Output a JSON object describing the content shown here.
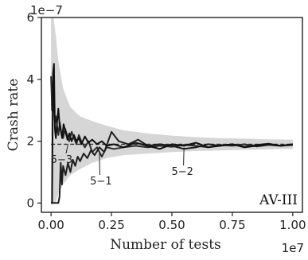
{
  "chart_data": {
    "type": "line",
    "xlabel": "Number of tests",
    "ylabel": "Crash rate",
    "x_offset_label": "1e7",
    "y_offset_label": "1e−7",
    "xlim": [
      -0.04,
      1.04
    ],
    "ylim": [
      -0.3,
      6.0
    ],
    "x_ticks": [
      0.0,
      0.25,
      0.5,
      0.75,
      1.0
    ],
    "x_tick_labels": [
      "0.00",
      "0.25",
      "0.50",
      "0.75",
      "1.00"
    ],
    "y_ticks": [
      0,
      2,
      4,
      6
    ],
    "y_tick_labels": [
      "0",
      "2",
      "4",
      "6"
    ],
    "grid": false,
    "panel_label": "AV-III",
    "reference_line": {
      "y": 1.9,
      "x_start": 0.0,
      "x_end": 1.0,
      "style": "dashed",
      "color": "#333333"
    },
    "band": {
      "color": "#c8c8c8",
      "x": [
        0.0,
        0.01,
        0.02,
        0.03,
        0.05,
        0.08,
        0.12,
        0.17,
        0.23,
        0.3,
        0.4,
        0.5,
        0.6,
        0.7,
        0.8,
        0.9,
        1.0
      ],
      "upper": [
        6.0,
        6.0,
        5.4,
        4.6,
        3.7,
        3.1,
        2.8,
        2.65,
        2.5,
        2.35,
        2.25,
        2.18,
        2.13,
        2.1,
        2.08,
        2.06,
        2.05
      ],
      "lower": [
        0.0,
        0.0,
        0.0,
        0.3,
        0.6,
        0.9,
        1.1,
        1.3,
        1.45,
        1.55,
        1.6,
        1.65,
        1.68,
        1.7,
        1.72,
        1.74,
        1.75
      ]
    },
    "series": [
      {
        "name": "5-1",
        "color": "#2a2a2a",
        "x": [
          0.0,
          0.002,
          0.004,
          0.007,
          0.01,
          0.013,
          0.016,
          0.02,
          0.025,
          0.03,
          0.036,
          0.042,
          0.05,
          0.058,
          0.066,
          0.075,
          0.085,
          0.095,
          0.105,
          0.115,
          0.125,
          0.14,
          0.155,
          0.17,
          0.19,
          0.21,
          0.23,
          0.26,
          0.3,
          0.35,
          0.4,
          0.45,
          0.5,
          0.55,
          0.6,
          0.65,
          0.7,
          0.75,
          0.8,
          0.85,
          0.9,
          0.95,
          1.0
        ],
        "values": [
          4.1,
          3.6,
          3.0,
          3.9,
          3.4,
          2.9,
          2.6,
          2.8,
          2.5,
          2.2,
          2.6,
          2.3,
          2.1,
          2.4,
          2.2,
          2.0,
          2.3,
          2.1,
          1.9,
          2.2,
          2.0,
          1.8,
          2.0,
          1.65,
          1.8,
          1.5,
          1.8,
          1.75,
          1.8,
          1.85,
          1.8,
          1.85,
          1.82,
          1.88,
          1.85,
          1.8,
          1.88,
          1.85,
          1.9,
          1.83,
          1.88,
          1.85,
          1.9
        ]
      },
      {
        "name": "5-2",
        "color": "#1e1e1e",
        "x": [
          0.0,
          0.002,
          0.005,
          0.008,
          0.011,
          0.014,
          0.018,
          0.022,
          0.026,
          0.03,
          0.035,
          0.04,
          0.045,
          0.05,
          0.06,
          0.07,
          0.08,
          0.09,
          0.1,
          0.11,
          0.12,
          0.135,
          0.15,
          0.165,
          0.18,
          0.2,
          0.22,
          0.25,
          0.28,
          0.32,
          0.36,
          0.4,
          0.45,
          0.5,
          0.55,
          0.6,
          0.65,
          0.7,
          0.75,
          0.8,
          0.85,
          0.9,
          0.95,
          1.0
        ],
        "values": [
          0.0,
          0.0,
          0.0,
          0.0,
          0.0,
          0.0,
          0.0,
          0.0,
          0.0,
          0.0,
          0.2,
          1.3,
          0.6,
          1.2,
          0.9,
          1.3,
          1.0,
          1.4,
          1.2,
          1.5,
          1.35,
          1.6,
          1.45,
          1.7,
          1.55,
          1.8,
          1.65,
          2.3,
          2.0,
          1.9,
          2.05,
          1.85,
          1.9,
          1.85,
          1.75,
          1.8,
          1.9,
          1.85,
          1.9,
          1.82,
          1.88,
          1.92,
          1.85,
          1.9
        ]
      },
      {
        "name": "5-3",
        "color": "#111111",
        "x": [
          0.0,
          0.004,
          0.008,
          0.012,
          0.016,
          0.02,
          0.025,
          0.03,
          0.035,
          0.04,
          0.046,
          0.052,
          0.06,
          0.068,
          0.076,
          0.085,
          0.095,
          0.105,
          0.115,
          0.125,
          0.14,
          0.155,
          0.17,
          0.19,
          0.21,
          0.23,
          0.26,
          0.3,
          0.35,
          0.4,
          0.45,
          0.5,
          0.55,
          0.6,
          0.65,
          0.7,
          0.75,
          0.8,
          0.85,
          0.9,
          0.95,
          1.0
        ],
        "values": [
          0.0,
          0.0,
          4.2,
          4.5,
          2.4,
          2.1,
          2.6,
          3.05,
          2.55,
          2.35,
          2.1,
          2.55,
          2.3,
          2.05,
          2.25,
          2.0,
          2.2,
          2.0,
          2.1,
          1.9,
          2.15,
          1.95,
          2.05,
          1.9,
          2.0,
          1.85,
          1.9,
          1.8,
          1.95,
          1.85,
          1.75,
          1.9,
          1.85,
          1.95,
          1.8,
          1.85,
          1.9,
          1.8,
          1.85,
          1.9,
          1.85,
          1.88
        ]
      }
    ],
    "annotations": [
      {
        "text": "5−3",
        "target_x": 0.07,
        "target_y": 1.9
      },
      {
        "text": "5−1",
        "target_x": 0.2,
        "target_y": 1.6
      },
      {
        "text": "5−2",
        "target_x": 0.55,
        "target_y": 1.8
      }
    ]
  }
}
